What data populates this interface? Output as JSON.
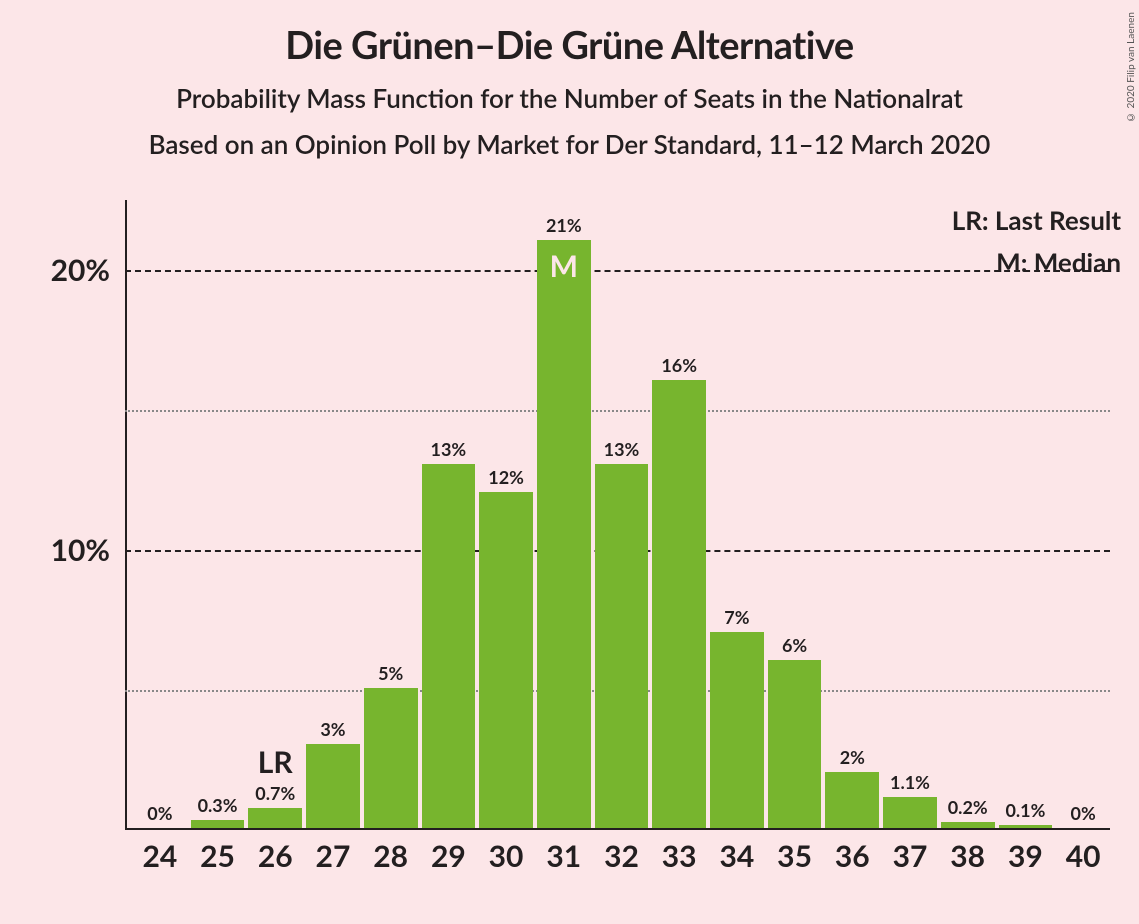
{
  "title": "Die Grünen–Die Grüne Alternative",
  "subtitle1": "Probability Mass Function for the Number of Seats in the Nationalrat",
  "subtitle2": "Based on an Opinion Poll by Market for Der Standard, 11–12 March 2020",
  "legend": {
    "lr": "LR: Last Result",
    "m": "M: Median"
  },
  "copyright": "© 2020 Filip van Laenen",
  "chart": {
    "type": "bar",
    "background_color": "#fce6e8",
    "bar_color": "#77b52e",
    "axis_color": "#231f20",
    "grid_major_color": "#231f20",
    "grid_minor_color": "#888888",
    "text_color": "#231f20",
    "annot_on_bar_color": "#fce6e8",
    "title_fontsize": 38,
    "subtitle_fontsize": 26,
    "tick_fontsize": 30,
    "barlabel_fontsize": 18,
    "ymax": 22.5,
    "y_major_ticks": [
      10,
      20
    ],
    "y_minor_ticks": [
      5,
      15
    ],
    "y_tick_labels": {
      "10": "10%",
      "20": "20%"
    },
    "categories": [
      24,
      25,
      26,
      27,
      28,
      29,
      30,
      31,
      32,
      33,
      34,
      35,
      36,
      37,
      38,
      39,
      40
    ],
    "values": [
      0,
      0.3,
      0.7,
      3,
      5,
      13,
      12,
      21,
      13,
      16,
      7,
      6,
      2,
      1.1,
      0.2,
      0.1,
      0
    ],
    "value_labels": [
      "0%",
      "0.3%",
      "0.7%",
      "3%",
      "5%",
      "13%",
      "12%",
      "21%",
      "13%",
      "16%",
      "7%",
      "6%",
      "2%",
      "1.1%",
      "0.2%",
      "0.1%",
      "0%"
    ],
    "median_index": 7,
    "median_label": "M",
    "lr_index": 2,
    "lr_label": "LR"
  }
}
